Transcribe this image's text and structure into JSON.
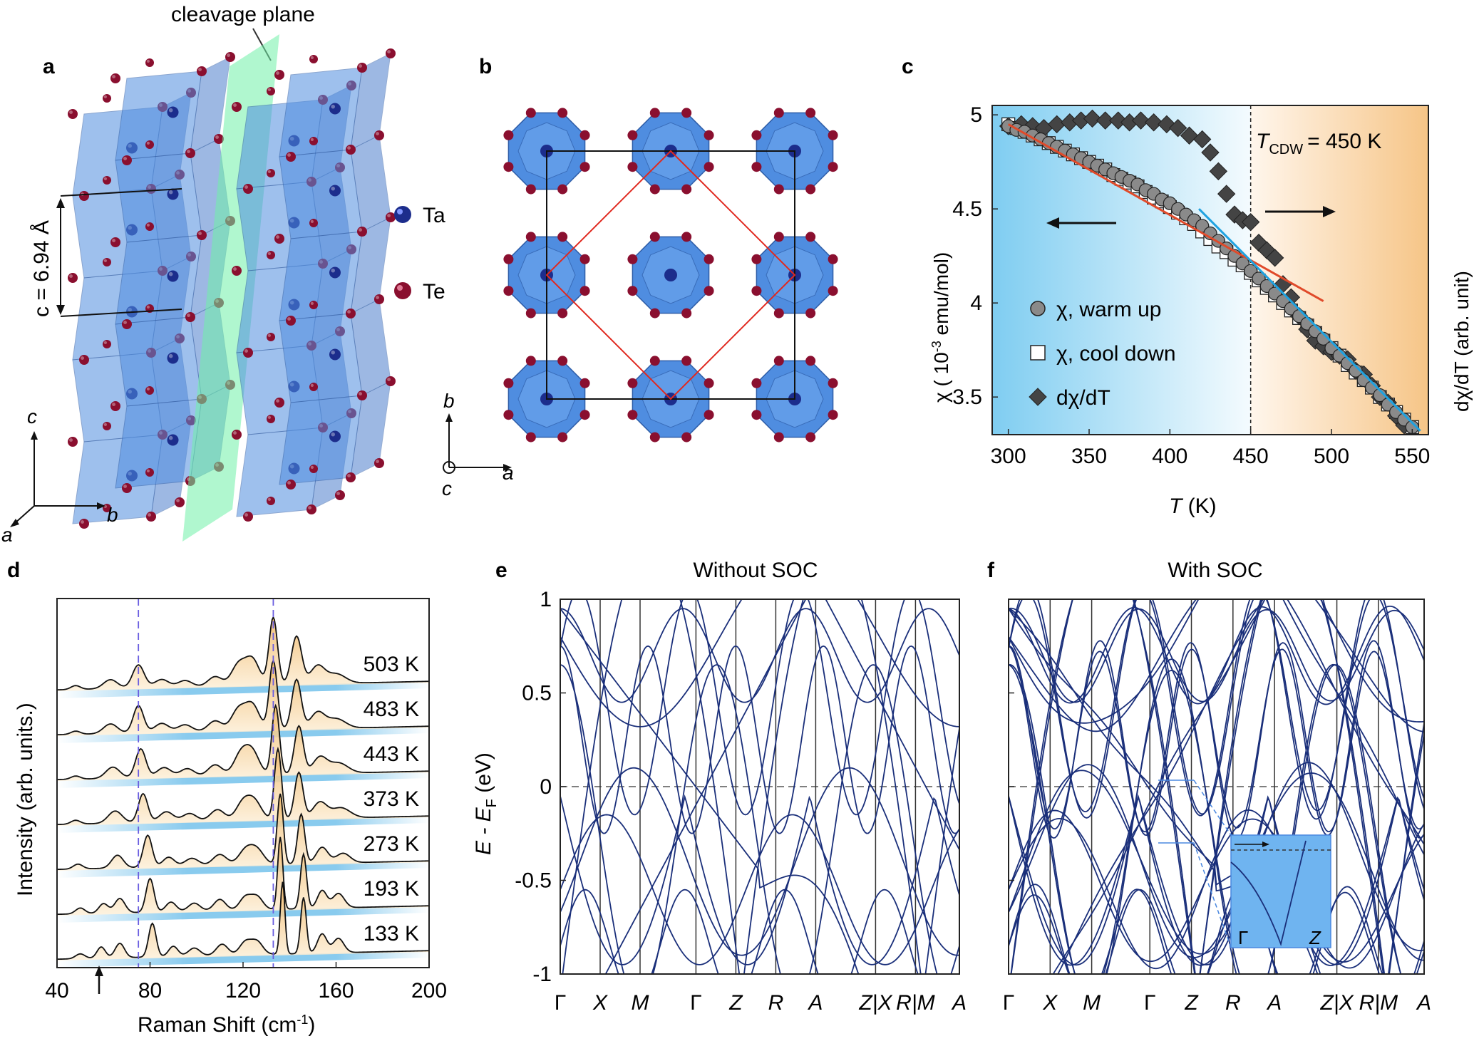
{
  "panel_labels": {
    "a": "a",
    "b": "b",
    "c": "c",
    "d": "d",
    "e": "e",
    "f": "f"
  },
  "panel_a": {
    "cleavage_label": "cleavage plane",
    "c_label": "c = 6.94 Å",
    "axis_c": "c",
    "axis_a": "a",
    "axis_b": "b",
    "legend": [
      {
        "label": "Ta",
        "color": "#1c2d8c"
      },
      {
        "label": "Te",
        "color": "#8a0f2f"
      }
    ]
  },
  "panel_b": {
    "axis_b": "b",
    "axis_a": "a",
    "axis_c": "c"
  },
  "colors": {
    "ta": "#1c2d8c",
    "te": "#8a0f2f",
    "poly": "#4f8de0",
    "plane": "#6ff0a8",
    "band": "#1a2f7a",
    "fit_red": "#e04a2a",
    "fit_blue": "#1fa2e0",
    "raman_fill": "#f3c788",
    "raman_base": "#7cc5ec"
  },
  "chart_data": [
    {
      "panel": "c",
      "type": "scatter",
      "xlabel": "T (K)",
      "ylabel": "χ ( 10-3 emu/mol)",
      "ylabel_main": "χ ( 10",
      "ylabel_sup": "-3",
      "ylabel_rest": " emu/mol)",
      "y2label": "dχ/dT (arb. unit)",
      "xlim": [
        290,
        560
      ],
      "ylim": [
        3.3,
        5.05
      ],
      "xticks": [
        300,
        350,
        400,
        450,
        500,
        550
      ],
      "yticks": [
        3.5,
        4,
        4.5,
        5
      ],
      "tcdw_label": "= 450 K",
      "tcdw_T": "T",
      "tcdw_sub": "CDW",
      "tcdw": 450,
      "legend": [
        "χ, warm up",
        "χ, cool down",
        "dχ/dT"
      ],
      "series": [
        {
          "name": "χ, warm up",
          "marker": "circle",
          "x": [
            300,
            305,
            310,
            315,
            320,
            325,
            330,
            335,
            340,
            345,
            350,
            355,
            360,
            365,
            370,
            375,
            380,
            385,
            390,
            395,
            400,
            405,
            410,
            415,
            420,
            425,
            430,
            435,
            440,
            445,
            450,
            455,
            460,
            465,
            470,
            475,
            480,
            485,
            490,
            495,
            500,
            505,
            510,
            515,
            520,
            525,
            530,
            535,
            540,
            545,
            550
          ],
          "y": [
            4.94,
            4.92,
            4.91,
            4.89,
            4.87,
            4.85,
            4.83,
            4.81,
            4.79,
            4.77,
            4.75,
            4.73,
            4.71,
            4.69,
            4.67,
            4.65,
            4.63,
            4.6,
            4.58,
            4.55,
            4.53,
            4.5,
            4.47,
            4.44,
            4.41,
            4.37,
            4.33,
            4.29,
            4.25,
            4.21,
            4.17,
            4.13,
            4.09,
            4.05,
            4.01,
            3.97,
            3.93,
            3.89,
            3.85,
            3.81,
            3.76,
            3.72,
            3.68,
            3.64,
            3.59,
            3.55,
            3.51,
            3.46,
            3.42,
            3.38,
            3.34
          ]
        },
        {
          "name": "χ, cool down",
          "marker": "square",
          "x": [
            300,
            305,
            310,
            315,
            320,
            325,
            330,
            335,
            340,
            345,
            350,
            355,
            360,
            365,
            370,
            375,
            380,
            385,
            390,
            395,
            400,
            405,
            410,
            415,
            420,
            425,
            430,
            435,
            440,
            445,
            450,
            455,
            460,
            465,
            470,
            475,
            480,
            485,
            490,
            495,
            500,
            505,
            510,
            515,
            520,
            525,
            530,
            535,
            540,
            545,
            550
          ],
          "y": [
            4.95,
            4.93,
            4.91,
            4.89,
            4.87,
            4.85,
            4.83,
            4.81,
            4.79,
            4.77,
            4.75,
            4.73,
            4.71,
            4.68,
            4.66,
            4.64,
            4.62,
            4.59,
            4.56,
            4.54,
            4.51,
            4.48,
            4.45,
            4.42,
            4.38,
            4.34,
            4.3,
            4.27,
            4.23,
            4.2,
            4.16,
            4.12,
            4.08,
            4.04,
            4.0,
            3.96,
            3.92,
            3.88,
            3.84,
            3.8,
            3.76,
            3.72,
            3.67,
            3.63,
            3.59,
            3.55,
            3.5,
            3.46,
            3.42,
            3.38,
            3.34
          ]
        },
        {
          "name": "dχ/dT",
          "marker": "diamond",
          "x": [
            300,
            308,
            315,
            322,
            330,
            338,
            345,
            352,
            360,
            368,
            375,
            382,
            390,
            398,
            405,
            412,
            420,
            425,
            430,
            435,
            440,
            445,
            450,
            455,
            460,
            465,
            470,
            475,
            480,
            485,
            490,
            495,
            500,
            505,
            510,
            515,
            520,
            525,
            530,
            535,
            540,
            545
          ],
          "y": [
            4.94,
            4.95,
            4.94,
            4.93,
            4.95,
            4.96,
            4.97,
            4.98,
            4.97,
            4.97,
            4.96,
            4.97,
            4.96,
            4.95,
            4.93,
            4.89,
            4.87,
            4.8,
            4.7,
            4.58,
            4.47,
            4.44,
            4.43,
            4.32,
            4.28,
            4.24,
            4.1,
            4.03,
            3.93,
            3.86,
            3.8,
            3.77,
            3.74,
            3.72,
            3.7,
            3.64,
            3.62,
            3.56,
            3.5,
            3.47,
            3.4,
            3.35
          ]
        }
      ],
      "fits": [
        {
          "color": "red",
          "x": [
            300,
            495
          ],
          "y": [
            4.95,
            4.01
          ]
        },
        {
          "color": "blue",
          "x": [
            418,
            555
          ],
          "y": [
            4.5,
            3.32
          ]
        }
      ]
    },
    {
      "panel": "d",
      "type": "line",
      "xlabel": "Raman Shift (cm-1)",
      "xlabel_main": "Raman Shift (cm",
      "xlabel_sup": "-1",
      "xlabel_rest": ")",
      "ylabel": "Intensity (arb. units.)",
      "xlim": [
        40,
        200
      ],
      "xticks": [
        40,
        80,
        120,
        160,
        200
      ],
      "dashed_lines": [
        75,
        133
      ],
      "arrow_x": 59,
      "series": [
        {
          "name": "503 K",
          "peaks": [
            [
              48,
              0.12,
              2
            ],
            [
              63,
              0.28,
              3
            ],
            [
              75,
              0.72,
              2.5
            ],
            [
              85,
              0.25,
              3
            ],
            [
              95,
              0.2,
              3
            ],
            [
              108,
              0.3,
              3
            ],
            [
              118,
              0.65,
              3
            ],
            [
              124,
              0.8,
              3
            ],
            [
              133,
              2.1,
              1.8
            ],
            [
              143,
              1.5,
              2.2
            ],
            [
              152,
              0.55,
              3
            ],
            [
              160,
              0.3,
              4
            ]
          ]
        },
        {
          "name": "483 K",
          "peaks": [
            [
              48,
              0.1,
              2
            ],
            [
              63,
              0.3,
              3
            ],
            [
              75,
              0.85,
              2.2
            ],
            [
              85,
              0.28,
              3
            ],
            [
              95,
              0.22,
              3
            ],
            [
              108,
              0.32,
              3
            ],
            [
              118,
              0.65,
              3
            ],
            [
              124,
              0.78,
              3
            ],
            [
              133,
              2.15,
              1.7
            ],
            [
              143,
              1.55,
              2
            ],
            [
              152,
              0.5,
              3
            ],
            [
              160,
              0.3,
              4
            ]
          ]
        },
        {
          "name": "443 K",
          "peaks": [
            [
              48,
              0.1,
              2
            ],
            [
              64,
              0.35,
              3
            ],
            [
              76,
              0.9,
              2.2
            ],
            [
              86,
              0.3,
              3
            ],
            [
              96,
              0.25,
              3
            ],
            [
              108,
              0.35,
              3
            ],
            [
              119,
              0.65,
              3
            ],
            [
              124,
              0.7,
              3
            ],
            [
              134,
              2.15,
              1.6
            ],
            [
              144,
              1.5,
              1.9
            ],
            [
              153,
              0.5,
              3
            ],
            [
              161,
              0.32,
              4
            ]
          ]
        },
        {
          "name": "373 K",
          "peaks": [
            [
              48,
              0.12,
              2
            ],
            [
              65,
              0.38,
              3
            ],
            [
              77,
              0.9,
              2
            ],
            [
              87,
              0.32,
              3
            ],
            [
              97,
              0.25,
              3
            ],
            [
              109,
              0.35,
              3
            ],
            [
              120,
              0.55,
              3
            ],
            [
              125,
              0.55,
              3
            ],
            [
              135,
              2.2,
              1.5
            ],
            [
              144,
              1.45,
              1.8
            ],
            [
              153,
              0.5,
              3
            ],
            [
              162,
              0.32,
              4
            ]
          ]
        },
        {
          "name": "273 K",
          "peaks": [
            [
              49,
              0.15,
              2
            ],
            [
              66,
              0.4,
              2.5
            ],
            [
              79,
              1.0,
              1.9
            ],
            [
              88,
              0.3,
              2.5
            ],
            [
              98,
              0.25,
              3
            ],
            [
              110,
              0.35,
              3
            ],
            [
              121,
              0.45,
              3
            ],
            [
              126,
              0.45,
              3
            ],
            [
              136,
              2.2,
              1.3
            ],
            [
              145,
              1.55,
              1.5
            ],
            [
              154,
              0.5,
              2.5
            ],
            [
              163,
              0.3,
              3
            ]
          ]
        },
        {
          "name": "193 K",
          "peaks": [
            [
              50,
              0.18,
              2
            ],
            [
              60,
              0.3,
              2
            ],
            [
              67,
              0.45,
              2.2
            ],
            [
              80,
              1.05,
              1.7
            ],
            [
              89,
              0.3,
              2.2
            ],
            [
              99,
              0.25,
              2.5
            ],
            [
              110,
              0.35,
              2.5
            ],
            [
              121,
              0.4,
              2.5
            ],
            [
              126,
              0.4,
              2.5
            ],
            [
              136,
              2.25,
              1.1
            ],
            [
              146,
              1.7,
              1.3
            ],
            [
              154,
              0.55,
              2
            ],
            [
              161,
              0.45,
              2.5
            ]
          ]
        },
        {
          "name": "133 K",
          "peaks": [
            [
              50,
              0.15,
              2
            ],
            [
              59,
              0.35,
              1.8
            ],
            [
              67,
              0.45,
              2
            ],
            [
              81,
              1.05,
              1.6
            ],
            [
              90,
              0.32,
              2
            ],
            [
              99,
              0.25,
              2.5
            ],
            [
              111,
              0.35,
              2.5
            ],
            [
              121,
              0.4,
              2.5
            ],
            [
              126,
              0.4,
              2.5
            ],
            [
              137,
              2.25,
              1
            ],
            [
              146,
              1.75,
              1.2
            ],
            [
              154,
              0.6,
              2
            ],
            [
              161,
              0.45,
              2.3
            ]
          ]
        }
      ]
    },
    {
      "panel": "e",
      "type": "line",
      "title": "Without SOC",
      "ylabel": "E - EF (eV)",
      "ylabel_main": "E - E",
      "ylabel_sub": "F",
      "ylabel_rest": " (eV)",
      "ylim": [
        -1,
        1
      ],
      "yticks": [
        -1,
        -0.5,
        0,
        0.5,
        1
      ],
      "kpoints": [
        "Γ",
        "X",
        "M",
        "Γ",
        "Z",
        "R",
        "A",
        "Z|X",
        "R|M",
        "A"
      ],
      "kpos": [
        0,
        0.1,
        0.2,
        0.34,
        0.44,
        0.54,
        0.64,
        0.79,
        0.89,
        1.0
      ]
    },
    {
      "panel": "f",
      "type": "line",
      "title": "With SOC",
      "ylim": [
        -1,
        1
      ],
      "yticks": [
        -1,
        -0.5,
        0,
        0.5,
        1
      ],
      "kpoints": [
        "Γ",
        "X",
        "M",
        "Γ",
        "Z",
        "R",
        "A",
        "Z|X",
        "R|M",
        "A"
      ],
      "kpos": [
        0,
        0.1,
        0.2,
        0.34,
        0.44,
        0.54,
        0.64,
        0.79,
        0.89,
        1.0
      ],
      "inset_labels": [
        "Γ",
        "Z"
      ]
    }
  ]
}
